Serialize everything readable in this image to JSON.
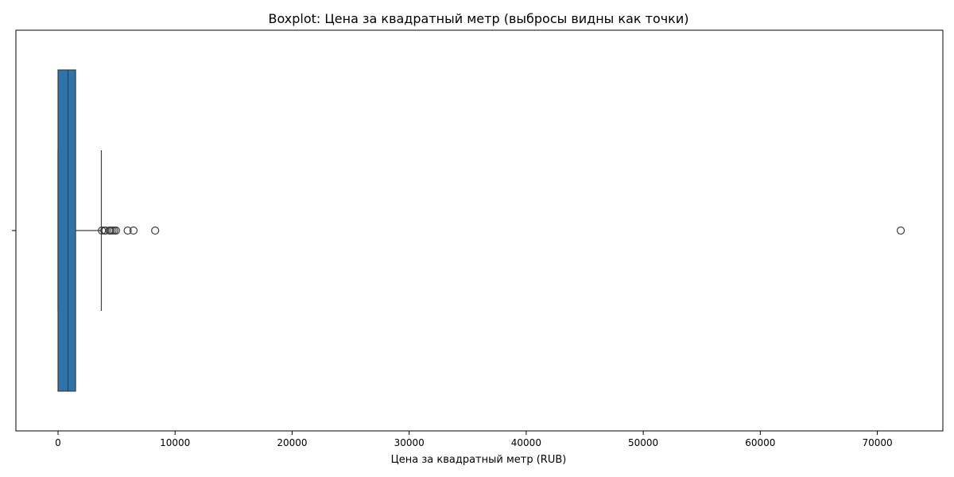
{
  "chart_data": {
    "type": "boxplot",
    "orientation": "horizontal",
    "title": "Boxplot: Цена за квадратный метр (выбросы видны как точки)",
    "xlabel": "Цена за квадратный метр (RUB)",
    "ylabel": "",
    "xlim": [
      -3600,
      75600
    ],
    "xticks": [
      0,
      10000,
      20000,
      30000,
      40000,
      50000,
      60000,
      70000
    ],
    "xtick_labels": [
      "0",
      "10000",
      "20000",
      "30000",
      "40000",
      "50000",
      "60000",
      "70000"
    ],
    "grid": false,
    "box": {
      "whisker_low": 0,
      "q1": 0,
      "median": 850,
      "q3": 1500,
      "whisker_high": 3700,
      "color": "#2f73a8",
      "edge_color": "#3f3f3f"
    },
    "outliers": [
      3750,
      3950,
      4050,
      4400,
      4500,
      4650,
      4800,
      4950,
      5950,
      6450,
      8300,
      72000
    ]
  }
}
